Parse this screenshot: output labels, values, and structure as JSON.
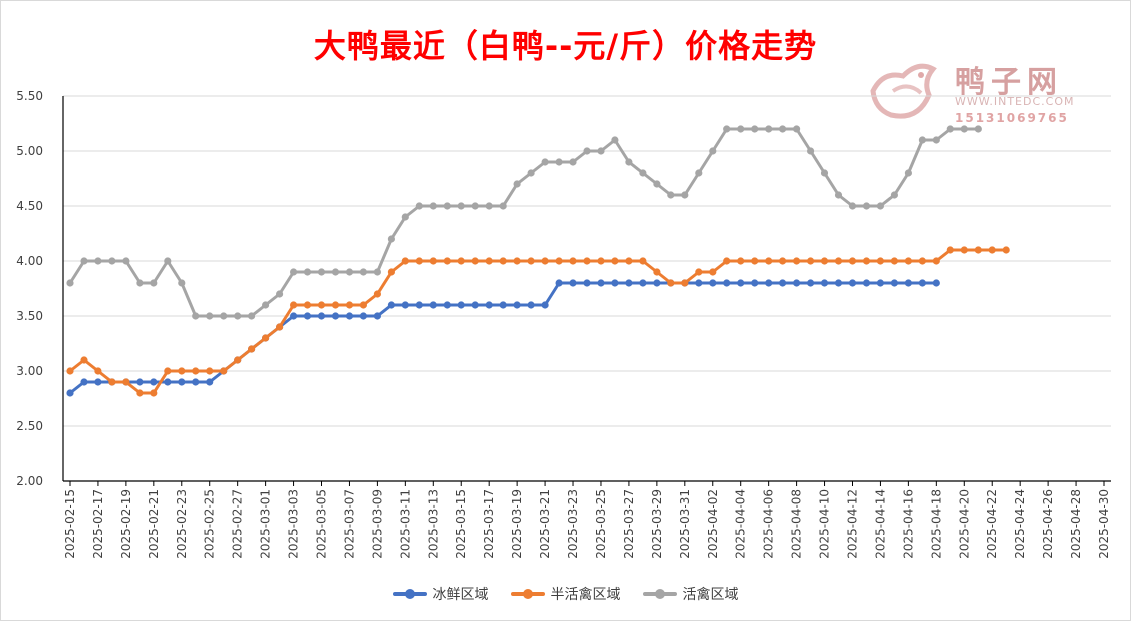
{
  "chart_data": {
    "type": "line",
    "title": "大鸭最近（白鸭--元/斤）价格走势",
    "ylim": [
      2.0,
      5.5
    ],
    "yticks": [
      "2.00",
      "2.50",
      "3.00",
      "3.50",
      "4.00",
      "4.50",
      "5.00",
      "5.50"
    ],
    "grid": "horizontal",
    "legend_position": "bottom",
    "x_tick_labels": [
      "2025-02-15",
      "2025-02-17",
      "2025-02-19",
      "2025-02-21",
      "2025-02-23",
      "2025-02-25",
      "2025-02-27",
      "2025-03-01",
      "2025-03-03",
      "2025-03-05",
      "2025-03-07",
      "2025-03-09",
      "2025-03-11",
      "2025-03-13",
      "2025-03-15",
      "2025-03-17",
      "2025-03-19",
      "2025-03-21",
      "2025-03-23",
      "2025-03-25",
      "2025-03-27",
      "2025-03-29",
      "2025-03-31",
      "2025-04-02",
      "2025-04-04",
      "2025-04-06",
      "2025-04-08",
      "2025-04-10",
      "2025-04-12",
      "2025-04-14",
      "2025-04-16",
      "2025-04-18",
      "2025-04-20",
      "2025-04-22",
      "2025-04-24",
      "2025-04-26",
      "2025-04-28",
      "2025-04-30"
    ],
    "x_start": "2025-02-15",
    "x_end": "2025-04-30",
    "series": [
      {
        "name": "冰鲜区域",
        "color": "#4472c4",
        "values": [
          2.8,
          2.9,
          2.9,
          2.9,
          2.9,
          2.9,
          2.9,
          2.9,
          2.9,
          2.9,
          2.9,
          3.0,
          3.1,
          3.2,
          3.3,
          3.4,
          3.5,
          3.5,
          3.5,
          3.5,
          3.5,
          3.5,
          3.5,
          3.6,
          3.6,
          3.6,
          3.6,
          3.6,
          3.6,
          3.6,
          3.6,
          3.6,
          3.6,
          3.6,
          3.6,
          3.8,
          3.8,
          3.8,
          3.8,
          3.8,
          3.8,
          3.8,
          3.8,
          3.8,
          3.8,
          3.8,
          3.8,
          3.8,
          3.8,
          3.8,
          3.8,
          3.8,
          3.8,
          3.8,
          3.8,
          3.8,
          3.8,
          3.8,
          3.8,
          3.8,
          3.8,
          3.8,
          3.8
        ]
      },
      {
        "name": "半活禽区域",
        "color": "#ed7d31",
        "values": [
          3.0,
          3.1,
          3.0,
          2.9,
          2.9,
          2.8,
          2.8,
          3.0,
          3.0,
          3.0,
          3.0,
          3.0,
          3.1,
          3.2,
          3.3,
          3.4,
          3.6,
          3.6,
          3.6,
          3.6,
          3.6,
          3.6,
          3.7,
          3.9,
          4.0,
          4.0,
          4.0,
          4.0,
          4.0,
          4.0,
          4.0,
          4.0,
          4.0,
          4.0,
          4.0,
          4.0,
          4.0,
          4.0,
          4.0,
          4.0,
          4.0,
          4.0,
          3.9,
          3.8,
          3.8,
          3.9,
          3.9,
          4.0,
          4.0,
          4.0,
          4.0,
          4.0,
          4.0,
          4.0,
          4.0,
          4.0,
          4.0,
          4.0,
          4.0,
          4.0,
          4.0,
          4.0,
          4.0,
          4.1,
          4.1,
          4.1,
          4.1,
          4.1
        ]
      },
      {
        "name": "活禽区域",
        "color": "#a5a5a5",
        "values": [
          3.8,
          4.0,
          4.0,
          4.0,
          4.0,
          3.8,
          3.8,
          4.0,
          3.8,
          3.5,
          3.5,
          3.5,
          3.5,
          3.5,
          3.6,
          3.7,
          3.9,
          3.9,
          3.9,
          3.9,
          3.9,
          3.9,
          3.9,
          4.2,
          4.4,
          4.5,
          4.5,
          4.5,
          4.5,
          4.5,
          4.5,
          4.5,
          4.7,
          4.8,
          4.9,
          4.9,
          4.9,
          5.0,
          5.0,
          5.1,
          4.9,
          4.8,
          4.7,
          4.6,
          4.6,
          4.8,
          5.0,
          5.2,
          5.2,
          5.2,
          5.2,
          5.2,
          5.2,
          5.0,
          4.8,
          4.6,
          4.5,
          4.5,
          4.5,
          4.6,
          4.8,
          5.1,
          5.1,
          5.2,
          5.2,
          5.2
        ]
      }
    ]
  },
  "watermark": {
    "brand": "鸭子网",
    "url": "WWW.INTEDC.COM",
    "phone": "15131069765"
  }
}
